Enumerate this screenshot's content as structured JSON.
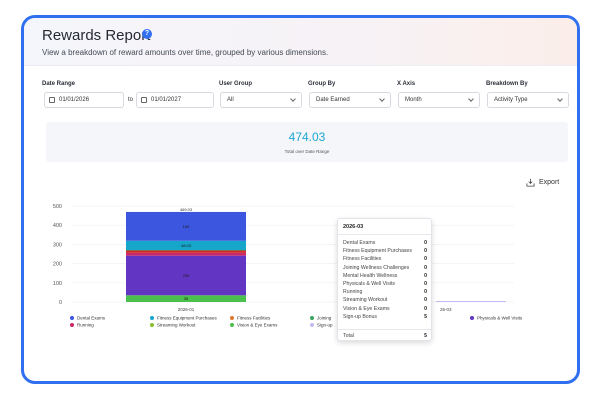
{
  "header": {
    "title": "Rewards Report",
    "subtitle": "View a breakdown of reward amounts over time, grouped by various dimensions."
  },
  "filters": {
    "date_range_label": "Date Range",
    "start_date": "01/01/2026",
    "to_label": "to",
    "end_date": "01/01/2027",
    "user_group_label": "User Group",
    "user_group_value": "All",
    "group_by_label": "Group By",
    "group_by_value": "Date Earned",
    "x_axis_label": "X Axis",
    "x_axis_value": "Month",
    "breakdown_label": "Breakdown By",
    "breakdown_value": "Activity Type"
  },
  "summary": {
    "total": "474.03",
    "caption": "Total over Date Range"
  },
  "toolbar": {
    "export_label": "Export"
  },
  "chart_data": {
    "type": "bar",
    "stacked": true,
    "categories": [
      "2026-01"
    ],
    "partial_category_label": "26-03",
    "ylim": [
      0,
      500
    ],
    "yticks": [
      0,
      100,
      200,
      300,
      400,
      500
    ],
    "bar_total_label": "469.03",
    "series": [
      {
        "name": "Dental Exams",
        "color": "#3d56e0",
        "values": [
          0
        ],
        "label": ""
      },
      {
        "name": "Fitness Equipment Purchases",
        "color": "#16a6c9",
        "values": [
          0
        ],
        "label": ""
      },
      {
        "name": "Fitness Facilities",
        "color": "#e07a2e",
        "values": [
          0
        ],
        "label": ""
      },
      {
        "name": "Joining Wellness Challenges",
        "color": "#3aa55d",
        "values": [
          0
        ],
        "label": ""
      },
      {
        "name": "Mental Health Wellness",
        "color": "#a0a4ad",
        "values": [
          0
        ],
        "label": ""
      },
      {
        "name": "Physicals & Well Visits",
        "color": "#6236c2",
        "values": [
          0
        ],
        "label": ""
      },
      {
        "name": "Running",
        "color": "#c7296a",
        "values": [
          0
        ],
        "label": ""
      },
      {
        "name": "Streaming Workout",
        "color": "#8bbf2a",
        "values": [
          0
        ],
        "label": ""
      },
      {
        "name": "Vision & Eye Exams",
        "color": "#4cc04d",
        "values": [
          0
        ],
        "label": ""
      },
      {
        "name": "Sign-up Bonus",
        "color": "#c5b9f0",
        "values": [
          0
        ],
        "label": ""
      }
    ],
    "stack_segments": [
      {
        "color": "#4cc04d",
        "value": 35,
        "label": "35"
      },
      {
        "color": "#6236c2",
        "value": 206,
        "label": "206"
      },
      {
        "color": "#c7296a",
        "value": 15,
        "label": ""
      },
      {
        "color": "#d12b2b",
        "value": 13,
        "label": ""
      },
      {
        "color": "#3aa55d",
        "value": 2,
        "label": ""
      },
      {
        "color": "#16a6c9",
        "value": 48,
        "label": "48.03"
      },
      {
        "color": "#3d56e0",
        "value": 150,
        "label": "150"
      }
    ]
  },
  "legend": [
    {
      "name": "Dental Exams",
      "color": "#3d56e0"
    },
    {
      "name": "Fitness Equipment Purchases",
      "color": "#16a6c9"
    },
    {
      "name": "Fitness Facilities",
      "color": "#e07a2e"
    },
    {
      "name": "Joining",
      "color": "#3aa55d"
    },
    {
      "name": "ellness",
      "color": "#a0a4ad"
    },
    {
      "name": "Physicals & Well Visits",
      "color": "#6236c2"
    },
    {
      "name": "Running",
      "color": "#c7296a"
    },
    {
      "name": "Streaming Workout",
      "color": "#8bbf2a"
    },
    {
      "name": "Vision & Eye Exams",
      "color": "#4cc04d"
    },
    {
      "name": "Sign-up",
      "color": "#c5b9f0"
    }
  ],
  "tooltip": {
    "title": "2026-03",
    "rows": [
      {
        "label": "Dental Exams",
        "value": "0"
      },
      {
        "label": "Fitness Equipment Purchases",
        "value": "0"
      },
      {
        "label": "Fitness Facilities",
        "value": "0"
      },
      {
        "label": "Joining Wellness Challenges",
        "value": "0"
      },
      {
        "label": "Mental Health Wellness",
        "value": "0"
      },
      {
        "label": "Physicals & Well Visits",
        "value": "0"
      },
      {
        "label": "Running",
        "value": "0"
      },
      {
        "label": "Streaming Workout",
        "value": "0"
      },
      {
        "label": "Vision & Eye Exams",
        "value": "0"
      },
      {
        "label": "Sign-up Bonus",
        "value": "5"
      }
    ],
    "total_label": "Total",
    "total_value": "5"
  }
}
